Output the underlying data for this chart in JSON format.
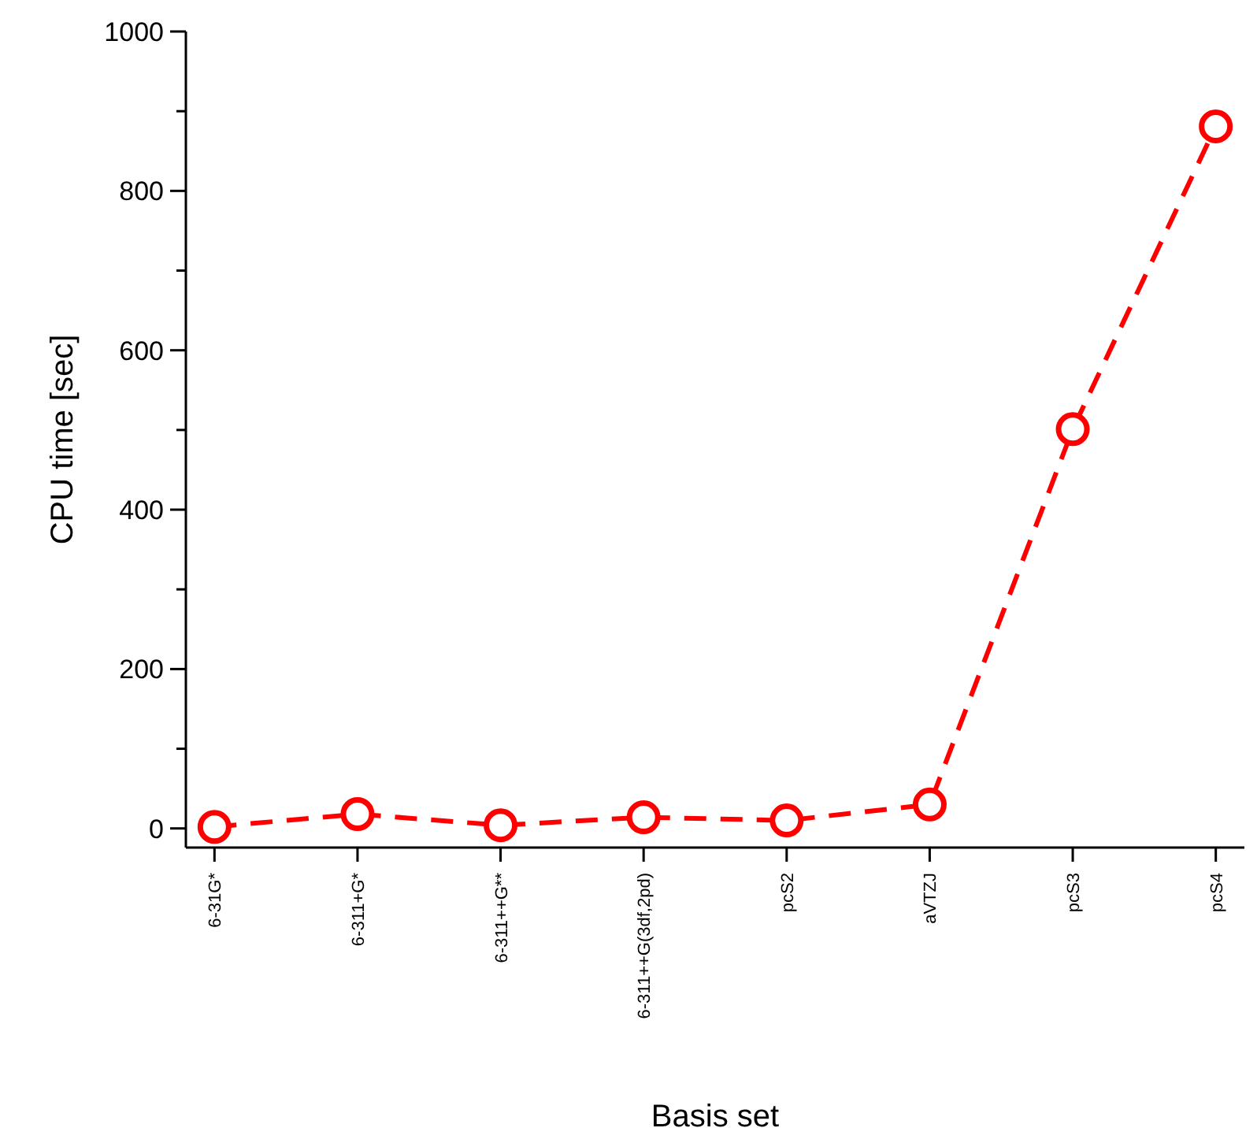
{
  "chart_data": {
    "type": "line",
    "xlabel": "Basis set",
    "ylabel": "CPU time [sec]",
    "categories": [
      "6-31G*",
      "6-311+G*",
      "6-311++G**",
      "6-311++G(3df,2pd)",
      "pcS2",
      "aVTZJ",
      "pcS3",
      "pcS4"
    ],
    "series": [
      {
        "color": "#ff0000",
        "values": [
          2,
          18,
          4,
          14,
          10,
          30,
          501,
          881
        ]
      }
    ],
    "ylim": [
      -24,
      1000
    ],
    "yticks": [
      0,
      {
        "value": 100,
        "label": null
      },
      200,
      {
        "value": 300,
        "label": null
      },
      400,
      {
        "value": 500,
        "label": null
      },
      600,
      {
        "value": 700,
        "label": null
      },
      800,
      {
        "value": 900,
        "label": null
      },
      1000
    ],
    "grid": false,
    "marker": "circle",
    "line_style": "dashed"
  }
}
